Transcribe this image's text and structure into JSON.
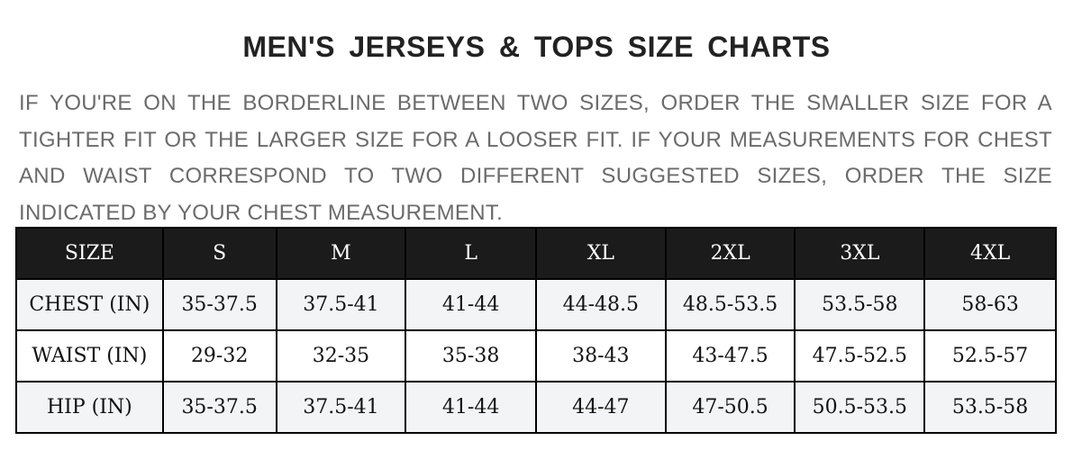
{
  "title": "MEN'S JERSEYS & TOPS SIZE CHARTS",
  "note": "IF YOU'RE ON THE BORDERLINE BETWEEN TWO SIZES, ORDER THE SMALLER SIZE FOR A TIGHTER FIT OR THE LARGER SIZE FOR A LOOSER FIT. IF YOUR MEASUREMENTS FOR CHEST AND WAIST CORRESPOND TO TWO DIFFERENT SUGGESTED SIZES, ORDER THE SIZE INDICATED BY YOUR CHEST MEASUREMENT.",
  "table": {
    "headers": [
      "SIZE",
      "S",
      "M",
      "L",
      "XL",
      "2XL",
      "3XL",
      "4XL"
    ],
    "rows": [
      [
        "CHEST (IN)",
        "35-37.5",
        "37.5-41",
        "41-44",
        "44-48.5",
        "48.5-53.5",
        "53.5-58",
        "58-63"
      ],
      [
        "WAIST (IN)",
        "29-32",
        "32-35",
        "35-38",
        "38-43",
        "43-47.5",
        "47.5-52.5",
        "52.5-57"
      ],
      [
        "HIP (IN)",
        "35-37.5",
        "37.5-41",
        "41-44",
        "44-47",
        "47-50.5",
        "50.5-53.5",
        "53.5-58"
      ]
    ]
  }
}
